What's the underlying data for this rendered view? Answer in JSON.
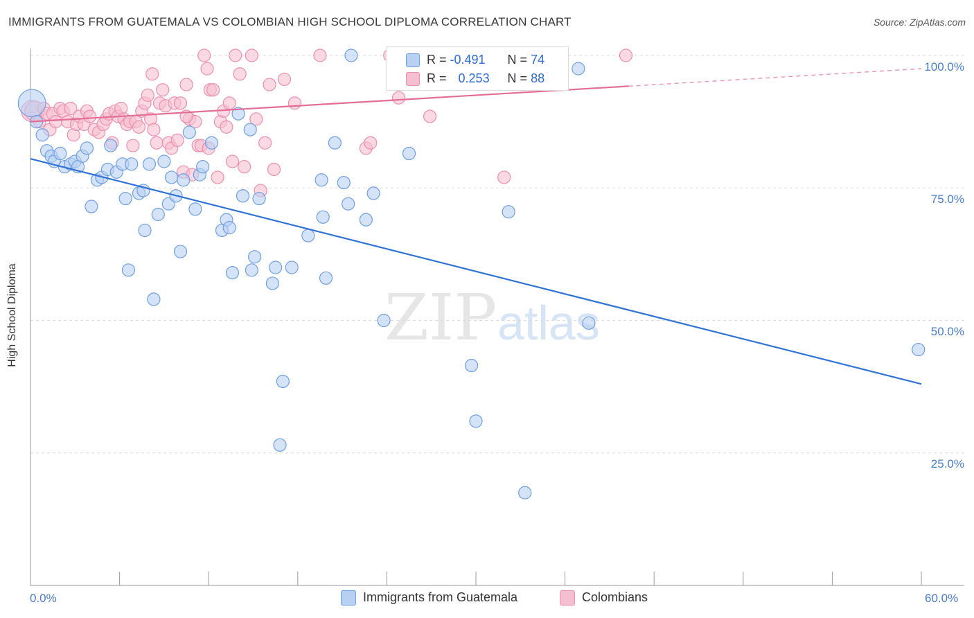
{
  "title": "IMMIGRANTS FROM GUATEMALA VS COLOMBIAN HIGH SCHOOL DIPLOMA CORRELATION CHART",
  "source": "Source: ZipAtlas.com",
  "watermark": {
    "zip": "ZIP",
    "atlas": "atlas"
  },
  "colors": {
    "blue": "#2f72d6",
    "blue_fill": "#b8d1f3",
    "blue_stroke": "#6f9fe0",
    "pink": "#e36d95",
    "pink_fill": "#f6bfd1",
    "pink_stroke": "#ec8fae",
    "tick_label": "#4a7cc4",
    "grid": "#d9d9d9"
  },
  "legend": {
    "r_label": "R =",
    "n_label": "N =",
    "series": [
      {
        "r": "-0.491",
        "n": "74"
      },
      {
        "r": "0.253",
        "n": "88"
      }
    ]
  },
  "bottom_legend": [
    "Immigrants from Guatemala",
    "Colombians"
  ],
  "chart_data": {
    "type": "scatter",
    "title": "IMMIGRANTS FROM GUATEMALA VS COLOMBIAN HIGH SCHOOL DIPLOMA CORRELATION CHART",
    "xlabel": "",
    "ylabel": "High School Diploma",
    "xlim": [
      0,
      60
    ],
    "ylim": [
      0,
      102
    ],
    "x_tick_labels": [
      "0.0%",
      "60.0%"
    ],
    "y_tick_labels": [
      "100.0%",
      "75.0%",
      "50.0%",
      "25.0%"
    ],
    "y_ticks": [
      100,
      75,
      50,
      25
    ],
    "grid": "horizontal dashed",
    "legend_placement": "top-center",
    "series": [
      {
        "name": "Immigrants from Guatemala",
        "r": -0.491,
        "n": 74,
        "trend": {
          "x": [
            0,
            60
          ],
          "y": [
            80.5,
            38.0
          ],
          "dashed_from": null
        },
        "points": [
          [
            0.1,
            91.0,
            2.2
          ],
          [
            0.4,
            87.5,
            1
          ],
          [
            0.8,
            85.0,
            1
          ],
          [
            1.1,
            82.0,
            1
          ],
          [
            1.4,
            81.0,
            1
          ],
          [
            1.6,
            80.0,
            1
          ],
          [
            2.0,
            81.5,
            1
          ],
          [
            2.3,
            79.0,
            1
          ],
          [
            2.7,
            79.5,
            1
          ],
          [
            3.0,
            80.0,
            1
          ],
          [
            3.2,
            79.0,
            1
          ],
          [
            3.5,
            81.0,
            1
          ],
          [
            3.8,
            82.5,
            1
          ],
          [
            4.1,
            71.5,
            1
          ],
          [
            4.5,
            76.5,
            1
          ],
          [
            4.8,
            77.0,
            1
          ],
          [
            5.2,
            78.5,
            1
          ],
          [
            5.4,
            83.0,
            1
          ],
          [
            5.8,
            78.0,
            1
          ],
          [
            6.2,
            79.5,
            1
          ],
          [
            6.4,
            73.0,
            1
          ],
          [
            6.6,
            59.5,
            1
          ],
          [
            6.8,
            79.5,
            1
          ],
          [
            7.3,
            74.0,
            1
          ],
          [
            7.6,
            74.5,
            1
          ],
          [
            7.7,
            67.0,
            1
          ],
          [
            8.0,
            79.5,
            1
          ],
          [
            8.3,
            54.0,
            1
          ],
          [
            8.6,
            70.0,
            1
          ],
          [
            9.0,
            80.0,
            1
          ],
          [
            9.3,
            72.0,
            1
          ],
          [
            9.5,
            77.0,
            1
          ],
          [
            9.8,
            73.5,
            1
          ],
          [
            10.1,
            63.0,
            1
          ],
          [
            10.3,
            76.5,
            1
          ],
          [
            10.7,
            85.5,
            1
          ],
          [
            11.1,
            71.0,
            1
          ],
          [
            11.4,
            77.5,
            1
          ],
          [
            11.6,
            79.0,
            1
          ],
          [
            12.2,
            83.5,
            1
          ],
          [
            12.9,
            67.0,
            1
          ],
          [
            13.2,
            69.0,
            1
          ],
          [
            13.4,
            67.5,
            1
          ],
          [
            13.6,
            59.0,
            1
          ],
          [
            14.0,
            89.0,
            1
          ],
          [
            14.3,
            73.5,
            1
          ],
          [
            14.8,
            86.0,
            1
          ],
          [
            14.9,
            59.5,
            1
          ],
          [
            15.1,
            62.0,
            1
          ],
          [
            15.4,
            73.0,
            1
          ],
          [
            16.3,
            57.0,
            1
          ],
          [
            16.5,
            60.0,
            1
          ],
          [
            16.8,
            26.5,
            1
          ],
          [
            17.0,
            38.5,
            1
          ],
          [
            17.6,
            60.0,
            1
          ],
          [
            18.7,
            66.0,
            1
          ],
          [
            19.6,
            76.5,
            1
          ],
          [
            19.7,
            69.5,
            1
          ],
          [
            19.9,
            58.0,
            1
          ],
          [
            20.5,
            83.5,
            1
          ],
          [
            21.1,
            76.0,
            1
          ],
          [
            21.4,
            72.0,
            1
          ],
          [
            21.6,
            100.0,
            1
          ],
          [
            22.6,
            69.0,
            1
          ],
          [
            23.1,
            74.0,
            1
          ],
          [
            23.8,
            50.0,
            1
          ],
          [
            25.5,
            81.5,
            1
          ],
          [
            29.7,
            41.5,
            1
          ],
          [
            30.0,
            31.0,
            1
          ],
          [
            32.2,
            70.5,
            1
          ],
          [
            33.3,
            17.5,
            1
          ],
          [
            36.9,
            97.5,
            1
          ],
          [
            37.6,
            49.5,
            1
          ],
          [
            59.8,
            44.5,
            1
          ]
        ]
      },
      {
        "name": "Colombians",
        "r": 0.253,
        "n": 88,
        "trend": {
          "x": [
            0,
            40.3
          ],
          "y": [
            87.5,
            94.2
          ],
          "dashed_to": [
            60,
            97.5
          ]
        },
        "points": [
          [
            0.1,
            89.5,
            1.7
          ],
          [
            0.3,
            89.5,
            1.6
          ],
          [
            0.6,
            87.5,
            1
          ],
          [
            0.9,
            90.0,
            1
          ],
          [
            1.1,
            89.0,
            1
          ],
          [
            1.3,
            86.0,
            1
          ],
          [
            1.5,
            89.0,
            1
          ],
          [
            1.7,
            87.5,
            1
          ],
          [
            2.0,
            90.0,
            1
          ],
          [
            2.2,
            89.5,
            1
          ],
          [
            2.5,
            87.5,
            1
          ],
          [
            2.7,
            90.0,
            1
          ],
          [
            2.9,
            85.0,
            1
          ],
          [
            3.1,
            87.0,
            1
          ],
          [
            3.3,
            88.5,
            1
          ],
          [
            3.6,
            87.0,
            1
          ],
          [
            3.8,
            89.5,
            1
          ],
          [
            4.0,
            88.5,
            1
          ],
          [
            4.3,
            86.0,
            1
          ],
          [
            4.6,
            85.5,
            1
          ],
          [
            4.9,
            87.0,
            1
          ],
          [
            5.1,
            88.0,
            1
          ],
          [
            5.3,
            89.0,
            1
          ],
          [
            5.5,
            83.5,
            1
          ],
          [
            5.7,
            89.5,
            1
          ],
          [
            5.9,
            88.5,
            1
          ],
          [
            6.1,
            90.0,
            1
          ],
          [
            6.3,
            88.0,
            1
          ],
          [
            6.5,
            87.0,
            1
          ],
          [
            6.7,
            87.5,
            1
          ],
          [
            6.9,
            83.0,
            1
          ],
          [
            7.1,
            87.5,
            1
          ],
          [
            7.3,
            86.5,
            1
          ],
          [
            7.5,
            89.5,
            1
          ],
          [
            7.7,
            91.0,
            1
          ],
          [
            7.9,
            92.5,
            1
          ],
          [
            8.1,
            88.0,
            1
          ],
          [
            8.3,
            86.0,
            1
          ],
          [
            8.5,
            83.5,
            1
          ],
          [
            8.7,
            91.0,
            1
          ],
          [
            8.9,
            93.5,
            1
          ],
          [
            9.1,
            90.5,
            1
          ],
          [
            9.3,
            83.5,
            1
          ],
          [
            9.5,
            82.5,
            1
          ],
          [
            9.7,
            91.0,
            1
          ],
          [
            9.9,
            84.0,
            1
          ],
          [
            10.1,
            91.0,
            1
          ],
          [
            10.3,
            78.0,
            1
          ],
          [
            10.5,
            94.5,
            1
          ],
          [
            10.7,
            88.0,
            1
          ],
          [
            10.9,
            77.5,
            1
          ],
          [
            11.1,
            87.5,
            1
          ],
          [
            11.3,
            83.0,
            1
          ],
          [
            11.5,
            83.0,
            1
          ],
          [
            11.7,
            100.0,
            1
          ],
          [
            11.9,
            97.5,
            1
          ],
          [
            12.1,
            93.5,
            1
          ],
          [
            12.3,
            93.5,
            1
          ],
          [
            12.6,
            77.0,
            1
          ],
          [
            12.8,
            87.5,
            1
          ],
          [
            13.0,
            89.5,
            1
          ],
          [
            13.2,
            86.5,
            1
          ],
          [
            13.4,
            91.0,
            1
          ],
          [
            13.6,
            80.0,
            1
          ],
          [
            13.8,
            100.0,
            1
          ],
          [
            14.1,
            96.5,
            1
          ],
          [
            14.4,
            79.0,
            1
          ],
          [
            14.9,
            100.0,
            1
          ],
          [
            15.2,
            88.0,
            1
          ],
          [
            15.5,
            74.5,
            1
          ],
          [
            15.8,
            83.5,
            1
          ],
          [
            16.1,
            94.5,
            1
          ],
          [
            16.4,
            78.5,
            1
          ],
          [
            17.1,
            95.5,
            1
          ],
          [
            17.8,
            91.0,
            1
          ],
          [
            19.5,
            100.0,
            1
          ],
          [
            22.6,
            82.5,
            1
          ],
          [
            22.9,
            83.5,
            1
          ],
          [
            24.2,
            100.0,
            1
          ],
          [
            24.8,
            92.0,
            1
          ],
          [
            26.9,
            88.5,
            1
          ],
          [
            27.1,
            100.0,
            1
          ],
          [
            28.3,
            100.0,
            1
          ],
          [
            31.9,
            77.0,
            1
          ],
          [
            40.1,
            100.0,
            1
          ],
          [
            10.5,
            88.5,
            1
          ],
          [
            12.0,
            82.5,
            1
          ],
          [
            8.2,
            96.5,
            1
          ]
        ]
      }
    ]
  }
}
